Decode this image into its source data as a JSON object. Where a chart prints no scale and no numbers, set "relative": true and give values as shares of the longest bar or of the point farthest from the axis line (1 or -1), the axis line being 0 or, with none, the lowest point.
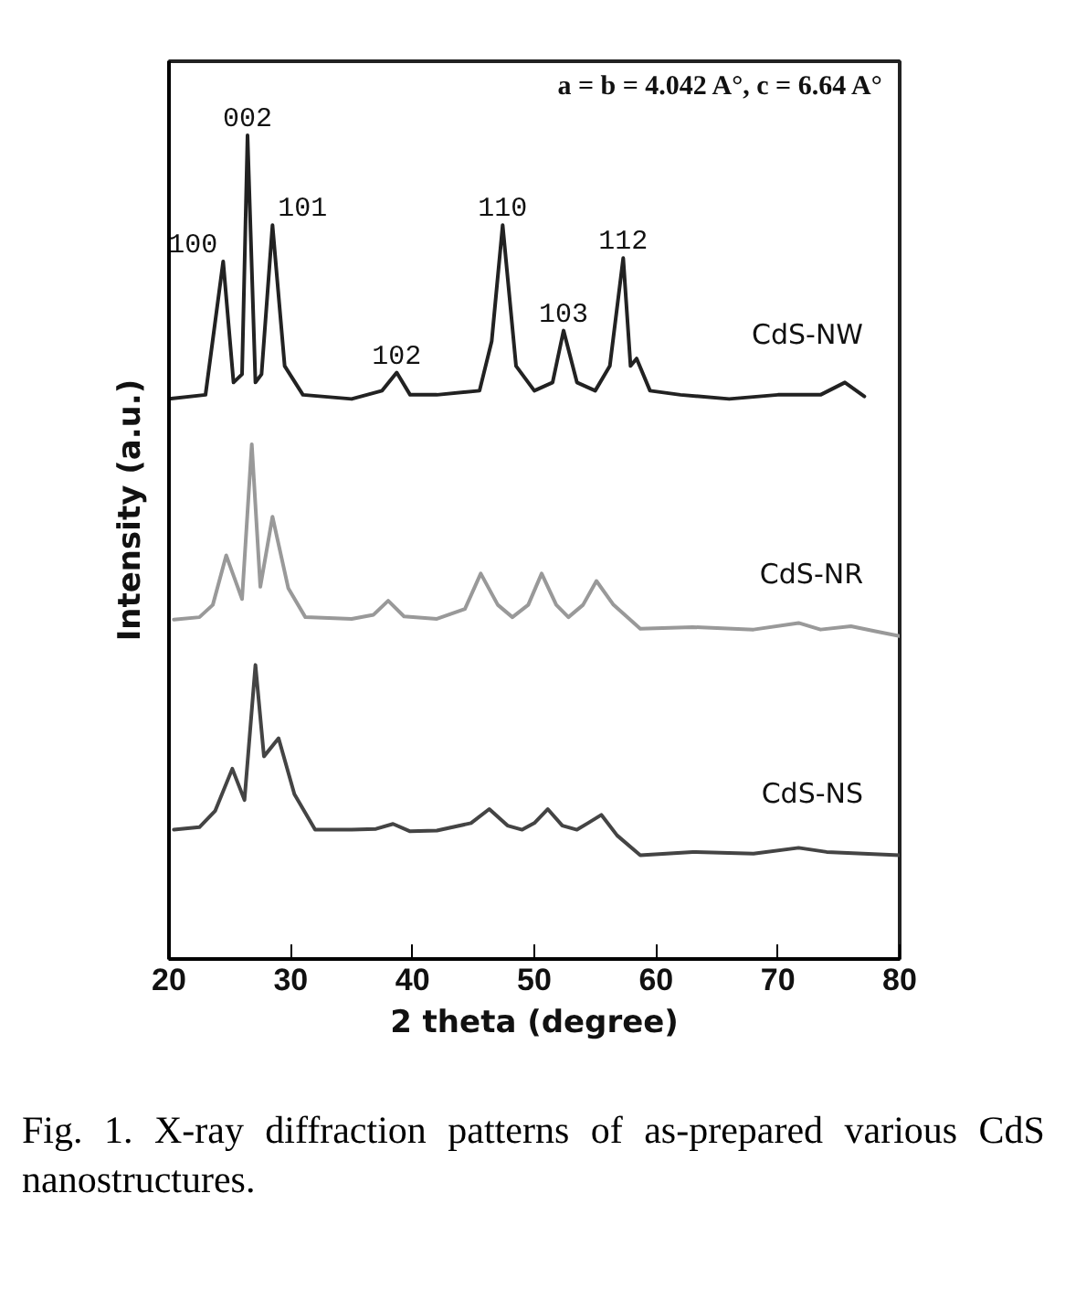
{
  "chart_data": {
    "type": "line",
    "relative": true,
    "xlabel": "2 theta (degree)",
    "ylabel": "Intensity (a.u.)",
    "xlim": [
      20,
      80
    ],
    "xticks": [
      20,
      30,
      40,
      50,
      60,
      70,
      80
    ],
    "grid": false,
    "marker": "none",
    "line_style": "solid",
    "series": [
      {
        "name": "CdS-NW",
        "color": "#222222",
        "x": [
          20,
          23,
          24.45,
          25.3,
          26.0,
          26.45,
          27.1,
          27.6,
          28.5,
          29.5,
          31,
          35,
          37.5,
          38.7,
          39.8,
          42,
          45.5,
          46.5,
          47.4,
          48.5,
          50,
          51.5,
          52.4,
          53.5,
          55,
          56.2,
          57.3,
          57.9,
          58.4,
          59.5,
          62,
          66,
          70,
          73.5,
          75.5,
          77.1
        ],
        "values": [
          0.68,
          0.685,
          0.847,
          0.7,
          0.71,
          1.0,
          0.7,
          0.71,
          0.891,
          0.72,
          0.685,
          0.68,
          0.69,
          0.712,
          0.685,
          0.685,
          0.69,
          0.75,
          0.891,
          0.72,
          0.69,
          0.7,
          0.763,
          0.7,
          0.69,
          0.72,
          0.851,
          0.72,
          0.729,
          0.69,
          0.685,
          0.68,
          0.685,
          0.685,
          0.7,
          0.683
        ]
      },
      {
        "name": "CdS-NR",
        "color": "#999999",
        "x": [
          20.4,
          22.5,
          23.6,
          24.7,
          26.0,
          26.8,
          27.5,
          28.5,
          29.8,
          31.2,
          35,
          36.8,
          38.0,
          39.3,
          42,
          44.3,
          45.6,
          47.0,
          48.2,
          49.5,
          50.6,
          51.8,
          52.8,
          54.0,
          55.1,
          56.5,
          58.7,
          63,
          68,
          71.7,
          73.5,
          76,
          78,
          80
        ],
        "values": [
          0.412,
          0.415,
          0.43,
          0.49,
          0.437,
          0.625,
          0.452,
          0.537,
          0.45,
          0.415,
          0.413,
          0.418,
          0.435,
          0.416,
          0.413,
          0.425,
          0.468,
          0.43,
          0.415,
          0.43,
          0.468,
          0.43,
          0.415,
          0.43,
          0.459,
          0.43,
          0.401,
          0.403,
          0.4,
          0.408,
          0.4,
          0.404,
          0.398,
          0.392
        ]
      },
      {
        "name": "CdS-NS",
        "color": "#444444",
        "x": [
          20.4,
          22.5,
          23.8,
          25.2,
          26.2,
          27.1,
          27.8,
          29.0,
          30.3,
          32,
          35,
          37,
          38.4,
          39.8,
          42,
          44.8,
          46.3,
          47.8,
          49.0,
          50.0,
          51.1,
          52.3,
          53.5,
          54.4,
          55.5,
          56.8,
          58.7,
          63,
          68,
          71.7,
          74,
          77,
          80
        ],
        "values": [
          0.157,
          0.16,
          0.18,
          0.231,
          0.193,
          0.357,
          0.246,
          0.268,
          0.2,
          0.157,
          0.157,
          0.158,
          0.164,
          0.155,
          0.156,
          0.165,
          0.182,
          0.162,
          0.157,
          0.165,
          0.182,
          0.162,
          0.157,
          0.165,
          0.175,
          0.15,
          0.126,
          0.13,
          0.128,
          0.135,
          0.13,
          0.128,
          0.126
        ]
      }
    ],
    "annotations": [
      {
        "text": "100",
        "x": 24.45,
        "y": 0.847
      },
      {
        "text": "002",
        "x": 26.45,
        "y": 1.0
      },
      {
        "text": "101",
        "x": 28.5,
        "y": 0.891
      },
      {
        "text": "102",
        "x": 38.7,
        "y": 0.712
      },
      {
        "text": "110",
        "x": 47.4,
        "y": 0.891
      },
      {
        "text": "103",
        "x": 52.4,
        "y": 0.763
      },
      {
        "text": "112",
        "x": 57.3,
        "y": 0.851
      },
      "a = b = 4.042 A°, c = 6.64 A°",
      "Fig. 1. X-ray diffraction patterns of as-prepared various CdS nanostructures."
    ]
  }
}
